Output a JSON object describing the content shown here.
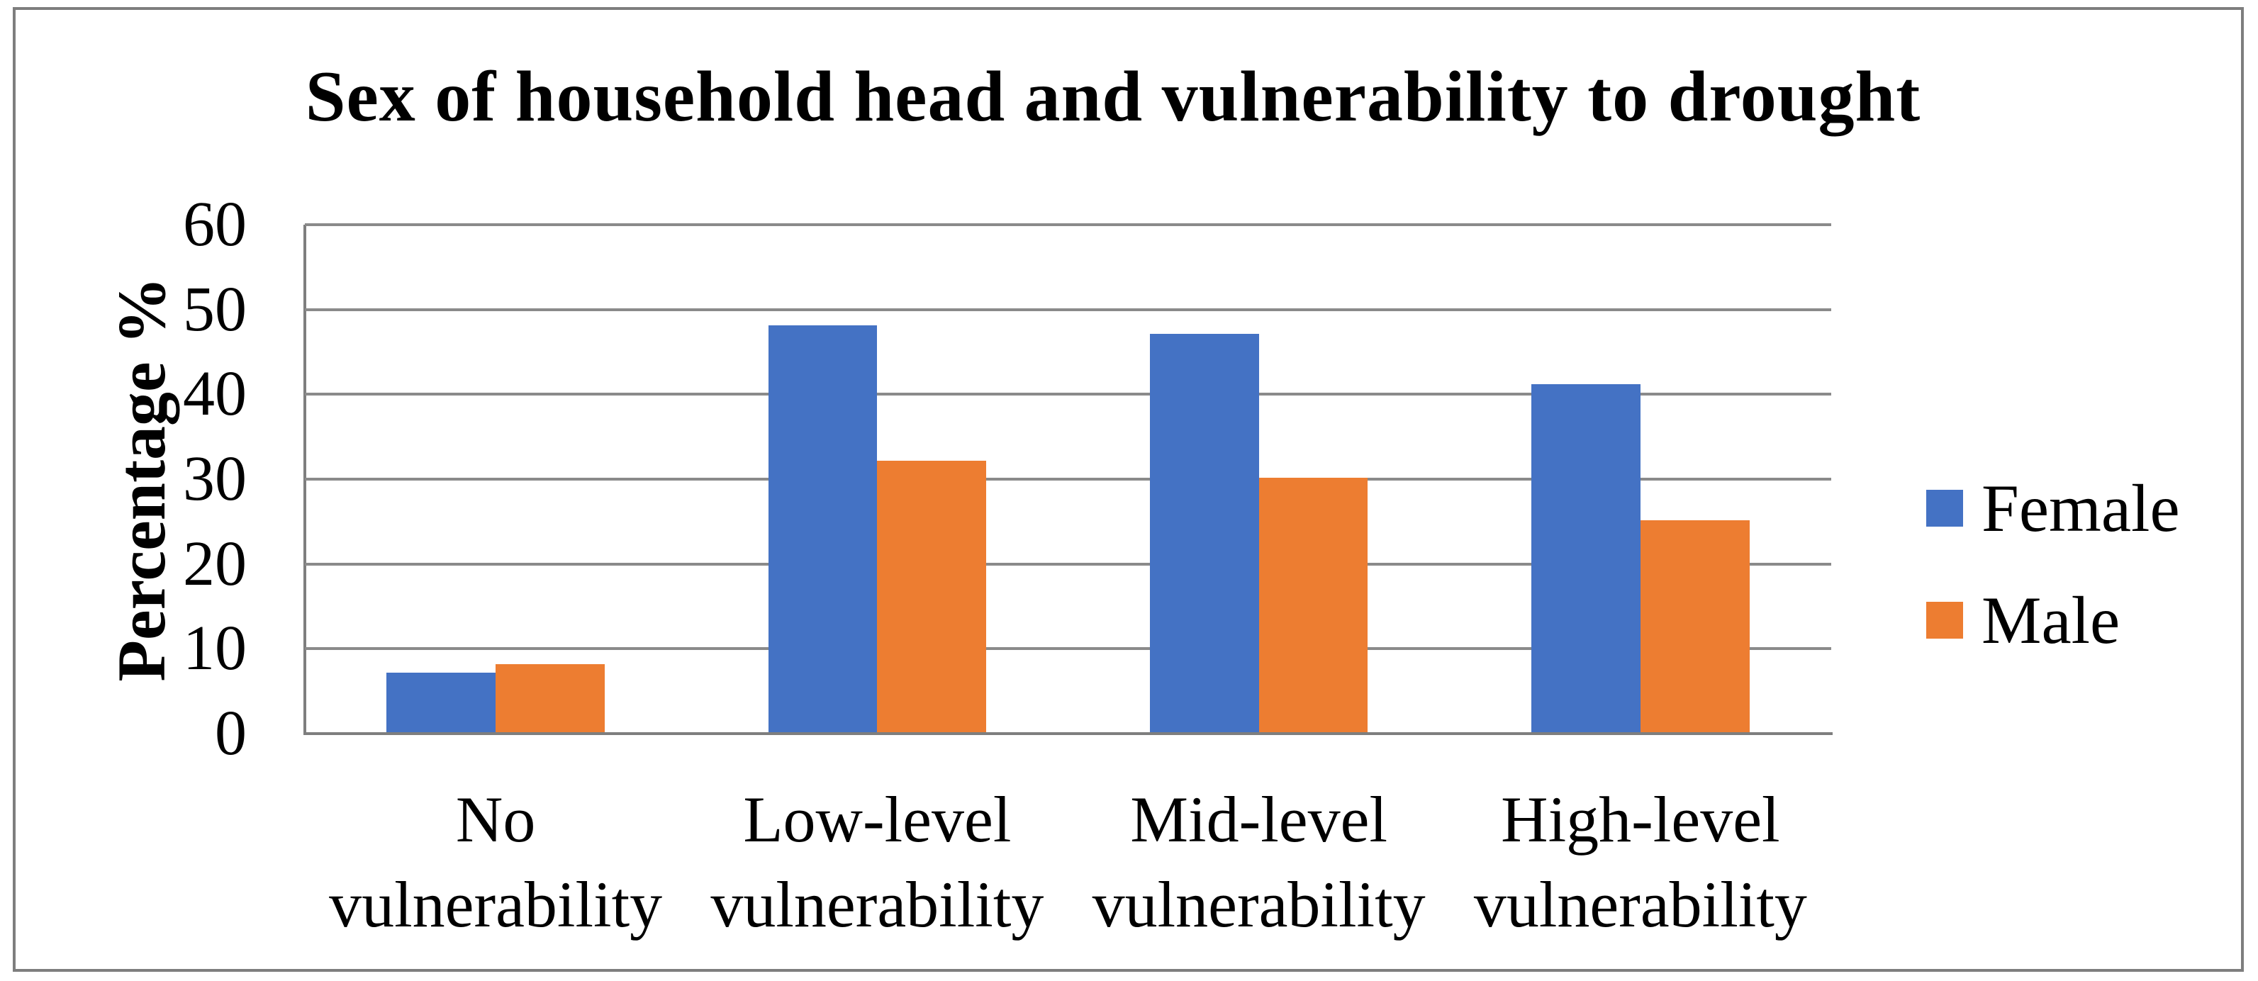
{
  "figure": {
    "background": "#FFFFFF",
    "border_color": "#7E7E7E"
  },
  "chart_data": {
    "type": "bar",
    "title": "Sex of household head and vulnerability to drought",
    "xlabel": "",
    "ylabel": "Percentage %",
    "categories": [
      "No vulnerability",
      "Low-level vulnerability",
      "Mid-level vulnerability",
      "High-level vulnerability"
    ],
    "series": [
      {
        "name": "Female",
        "color": "#4472C4",
        "values": [
          7,
          48,
          47,
          41
        ]
      },
      {
        "name": "Male",
        "color": "#ED7D31",
        "values": [
          8,
          32,
          30,
          25
        ]
      }
    ],
    "ylim": [
      0,
      60
    ],
    "yticks": [
      0,
      10,
      20,
      30,
      40,
      50,
      60
    ],
    "grid": "horizontal",
    "gridline_color": "#8A8A8A",
    "axis_line_color": "#7E7E7E",
    "legend_position": "right"
  }
}
